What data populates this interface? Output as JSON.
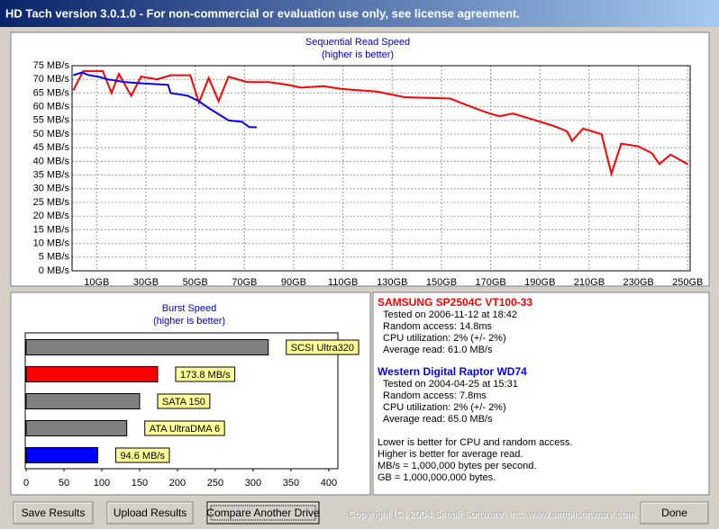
{
  "window_title": "HD Tach version 3.0.1.0  - For non-commercial or evaluation use only, see license agreement.",
  "chart_data": [
    {
      "type": "line",
      "title": "Sequential Read Speed",
      "subtitle": "(higher is better)",
      "xlim": [
        0,
        251
      ],
      "ylim": [
        0,
        75
      ],
      "xticks": [
        {
          "value": 10,
          "label": "10GB"
        },
        {
          "value": 30,
          "label": "30GB"
        },
        {
          "value": 50,
          "label": "50GB"
        },
        {
          "value": 70,
          "label": "70GB"
        },
        {
          "value": 90,
          "label": "90GB"
        },
        {
          "value": 110,
          "label": "110GB"
        },
        {
          "value": 130,
          "label": "130GB"
        },
        {
          "value": 150,
          "label": "150GB"
        },
        {
          "value": 170,
          "label": "170GB"
        },
        {
          "value": 190,
          "label": "190GB"
        },
        {
          "value": 210,
          "label": "210GB"
        },
        {
          "value": 230,
          "label": "230GB"
        },
        {
          "value": 250,
          "label": "250GB"
        }
      ],
      "yticks": [
        {
          "value": 0,
          "label": "0 MB/s"
        },
        {
          "value": 5,
          "label": "5 MB/s"
        },
        {
          "value": 10,
          "label": "10 MB/s"
        },
        {
          "value": 15,
          "label": "15 MB/s"
        },
        {
          "value": 20,
          "label": "20 MB/s"
        },
        {
          "value": 25,
          "label": "25 MB/s"
        },
        {
          "value": 30,
          "label": "30 MB/s"
        },
        {
          "value": 35,
          "label": "35 MB/s"
        },
        {
          "value": 40,
          "label": "40 MB/s"
        },
        {
          "value": 45,
          "label": "45 MB/s"
        },
        {
          "value": 50,
          "label": "50 MB/s"
        },
        {
          "value": 55,
          "label": "55 MB/s"
        },
        {
          "value": 60,
          "label": "60 MB/s"
        },
        {
          "value": 65,
          "label": "65 MB/s"
        },
        {
          "value": 70,
          "label": "70 MB/s"
        },
        {
          "value": 75,
          "label": "75 MB/s"
        }
      ],
      "grid": true,
      "series": [
        {
          "name": "SAMSUNG SP2504C VT100-33",
          "color": "#ff0000",
          "x": [
            0.5,
            4.5,
            12.5,
            16,
            19,
            24,
            28,
            34.5,
            40,
            48,
            51.5,
            55.5,
            59.5,
            63.5,
            71,
            80,
            87.5,
            93,
            102,
            109.5,
            124,
            135,
            153.5,
            160.5,
            168,
            173.5,
            179,
            186.5,
            195.5,
            201,
            203,
            207.5,
            215,
            219,
            223,
            230,
            235.5,
            238.5,
            243,
            250
          ],
          "values": [
            66,
            73,
            73,
            65,
            72,
            64,
            71,
            70,
            71.5,
            71.5,
            61.5,
            70.5,
            62,
            71,
            69,
            69,
            68,
            67,
            67.5,
            66.5,
            65.5,
            63.5,
            63,
            60.5,
            58,
            56.5,
            57.5,
            55.5,
            53,
            51,
            47.5,
            52,
            50,
            35.5,
            46.5,
            45.5,
            43,
            39,
            42.5,
            39
          ]
        },
        {
          "name": "Western Digital Raptor WD74",
          "color": "#0000ff",
          "x": [
            0.5,
            4,
            7,
            10.5,
            14.5,
            21.5,
            29,
            39,
            40,
            47,
            51.5,
            55.5,
            60,
            63.5,
            69,
            72,
            75
          ],
          "values": [
            71.5,
            72.5,
            71.5,
            71,
            70,
            69,
            68.5,
            68,
            65,
            64,
            62,
            59.5,
            57,
            55,
            54.5,
            52.5,
            52.5
          ]
        }
      ]
    },
    {
      "type": "hbar",
      "title": "Burst Speed",
      "subtitle": "(higher is better)",
      "categories": [
        "SCSI Ultra320",
        null,
        "SATA 150",
        "ATA UltraDMA 6",
        null
      ],
      "values": [
        320,
        173.8,
        150,
        133,
        94.6
      ],
      "value_labels": [
        null,
        "173.8 MB/s",
        null,
        null,
        "94.6 MB/s"
      ],
      "colors": [
        "#808080",
        "#ff0000",
        "#808080",
        "#808080",
        "#0000ff"
      ],
      "xlim": [
        0,
        412
      ],
      "xticks": [
        0,
        50,
        100,
        150,
        200,
        250,
        300,
        350,
        400
      ]
    }
  ],
  "info": {
    "drives": [
      {
        "lines": [
          "Tested on 2006-11-12 at 18:42",
          "Random access: 14.8ms",
          "CPU utilization: 2% (+/- 2%)",
          "Average read: 61.0 MB/s"
        ]
      },
      {
        "lines": [
          "Tested on 2004-04-25 at 15:31",
          "Random access: 7.8ms",
          "CPU utilization: 2% (+/- 2%)",
          "Average read: 65.0 MB/s"
        ]
      }
    ],
    "notes": [
      "Lower is better for CPU and random access.",
      "Higher is better for average read.",
      "MB/s = 1,000,000 bytes per second.",
      "GB = 1,000,000,000 bytes."
    ]
  },
  "buttons": [
    "Save Results",
    "Upload Results",
    "Compare Another Drive",
    "Done"
  ],
  "copyright": "Copyright (C) 2004 Simpli Software, Inc. www.simplisoftware.com"
}
